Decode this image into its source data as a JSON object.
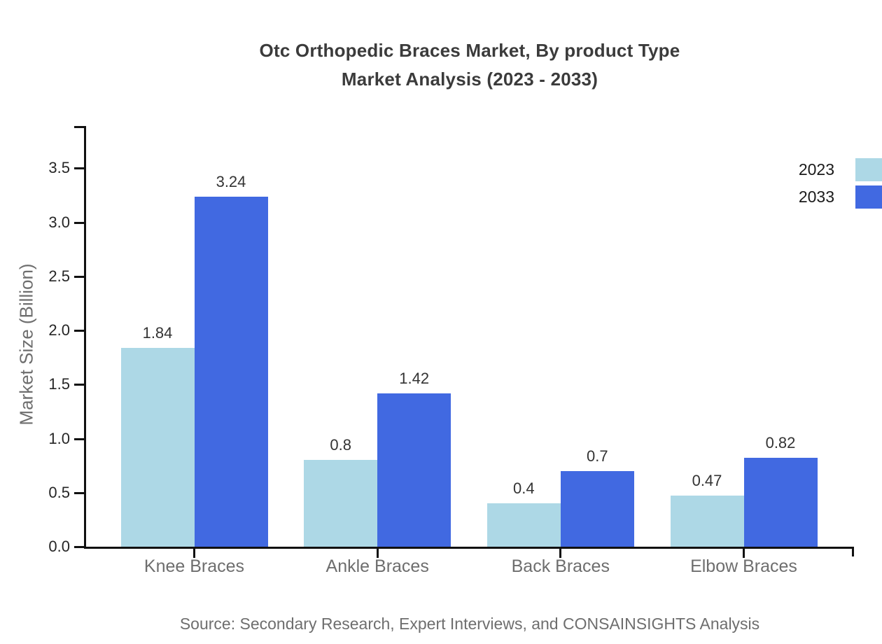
{
  "title": {
    "line1": "Otc Orthopedic Braces Market, By product Type",
    "line2": "Market Analysis (2023 - 2033)"
  },
  "source_note": "Source: Secondary Research, Expert Interviews, and CONSAINSIGHTS Analysis",
  "chart_data": {
    "type": "bar",
    "title": "Otc Orthopedic Braces Market, By product Type Market Analysis (2023 - 2033)",
    "categories": [
      "Knee Braces",
      "Ankle Braces",
      "Back Braces",
      "Elbow Braces"
    ],
    "series": [
      {
        "name": "2023",
        "color": "#ADD8E6",
        "values": [
          1.84,
          0.8,
          0.4,
          0.47
        ],
        "labels": [
          "1.84",
          "0.8",
          "0.4",
          "0.47"
        ]
      },
      {
        "name": "2033",
        "color": "#4169E1",
        "values": [
          3.24,
          1.42,
          0.7,
          0.82
        ],
        "labels": [
          "3.24",
          "1.42",
          "0.7",
          "0.82"
        ]
      }
    ],
    "xlabel": "",
    "ylabel": "Market Size (Billion)",
    "yticks": [
      0.0,
      0.5,
      1.0,
      1.5,
      2.0,
      2.5,
      3.0,
      3.5
    ],
    "ytick_labels": [
      "0.0",
      "0.5",
      "1.0",
      "1.5",
      "2.0",
      "2.5",
      "3.0",
      "3.5"
    ],
    "ylim": [
      0,
      3.89
    ],
    "grid": false,
    "legend_position": "upper-right",
    "bar_value_labels": true,
    "colors": {
      "axis": "#111111",
      "title_text": "#3b3b3b",
      "tick_text": "#262626",
      "category_text": "#6e6e6e",
      "value_label_text": "#333333",
      "source_text": "#6e6e6e",
      "ylabel_text": "#6e6e6e",
      "background": "#ffffff"
    }
  }
}
